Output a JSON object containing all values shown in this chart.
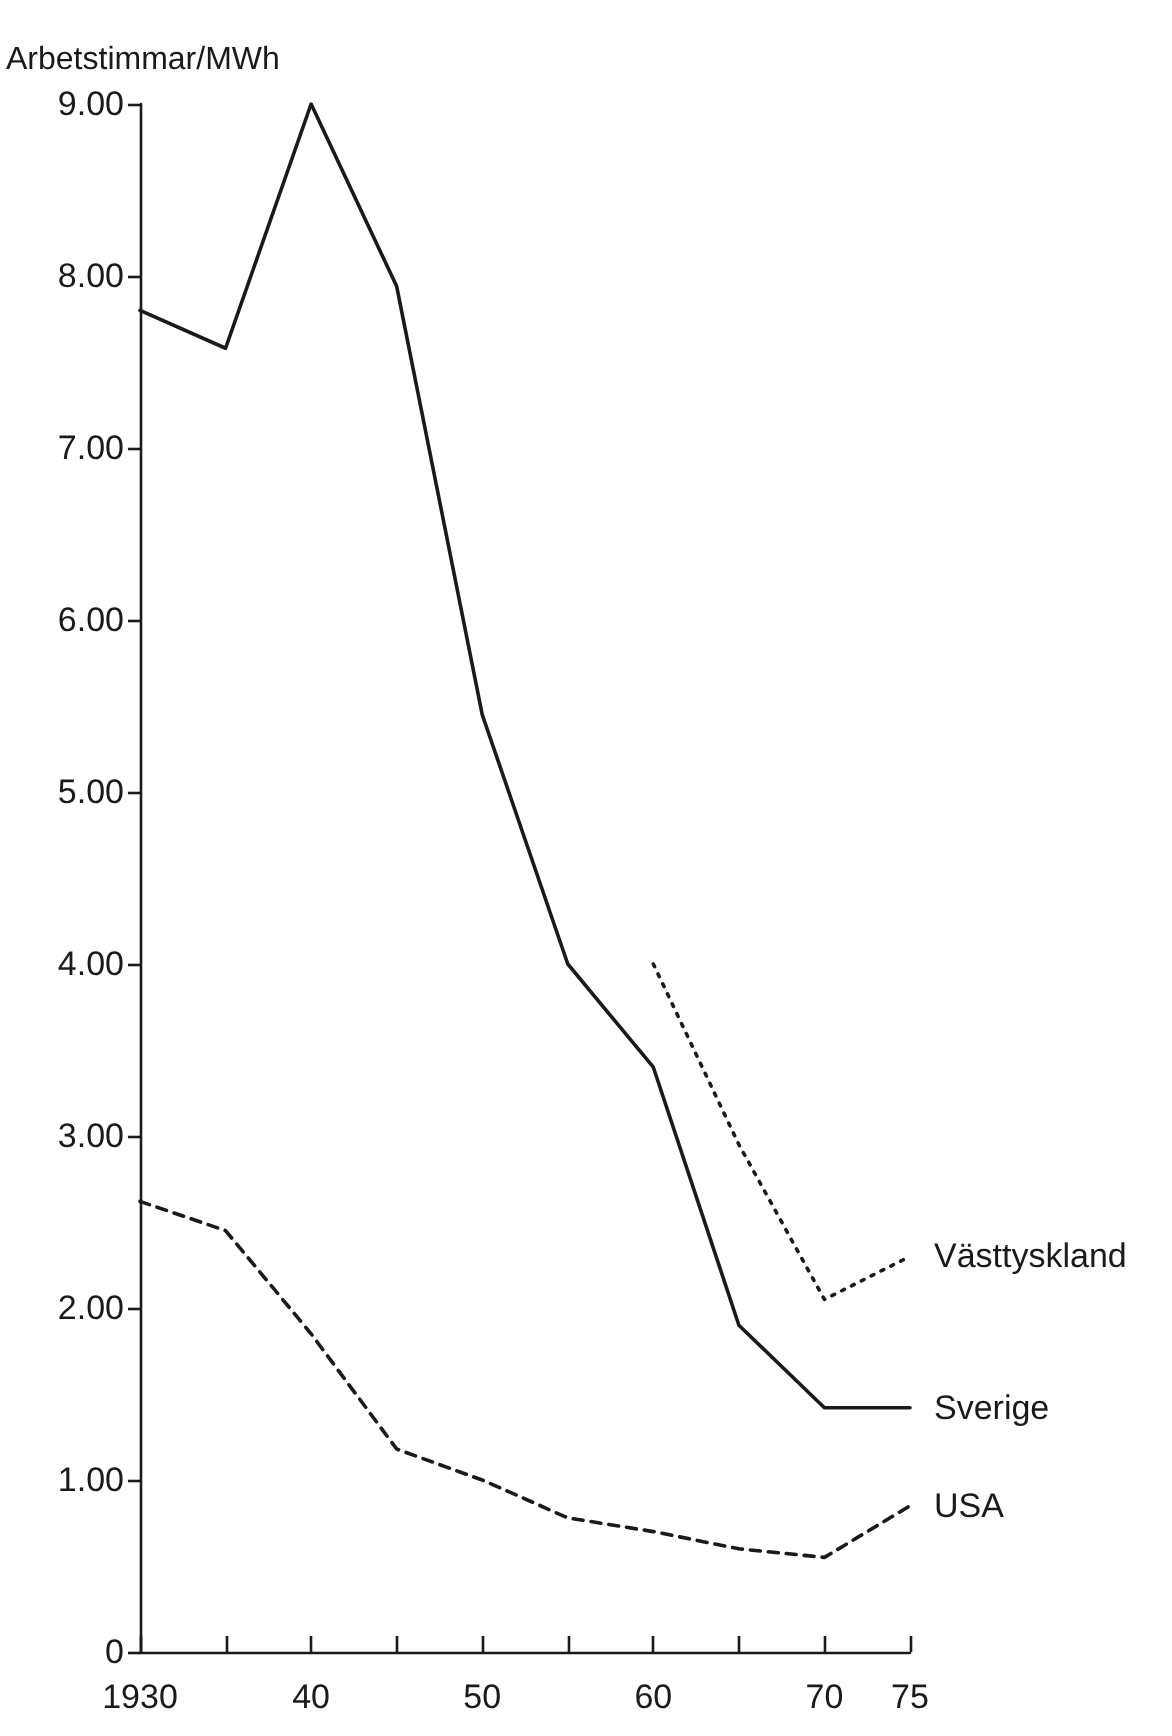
{
  "chart_data": {
    "type": "line",
    "ylabel": "Arbetstimmar/MWh",
    "x": [
      1930,
      1935,
      1940,
      1945,
      1950,
      1955,
      1960,
      1965,
      1970,
      1975
    ],
    "series": [
      {
        "name": "Sverige",
        "color": "#1a1a1a",
        "line_style": "solid",
        "values": [
          7.8,
          7.58,
          9.0,
          7.94,
          5.45,
          4.0,
          3.4,
          1.9,
          1.42,
          1.42
        ]
      },
      {
        "name": "Västtyskland",
        "color": "#1a1a1a",
        "line_style": "dotted",
        "values": [
          null,
          null,
          null,
          null,
          null,
          null,
          4.0,
          2.95,
          2.05,
          2.3
        ]
      },
      {
        "name": "USA",
        "color": "#1a1a1a",
        "line_style": "dashed",
        "values": [
          2.62,
          2.45,
          1.85,
          1.18,
          1.0,
          0.78,
          0.7,
          0.6,
          0.55,
          0.85
        ]
      }
    ],
    "xlim": [
      1930,
      1975
    ],
    "xticks": [
      {
        "value": 1930,
        "label": "1930"
      },
      {
        "value": 1935,
        "label": null
      },
      {
        "value": 1940,
        "label": "40"
      },
      {
        "value": 1945,
        "label": null
      },
      {
        "value": 1950,
        "label": "50"
      },
      {
        "value": 1955,
        "label": null
      },
      {
        "value": 1960,
        "label": "60"
      },
      {
        "value": 1965,
        "label": null
      },
      {
        "value": 1970,
        "label": "70"
      },
      {
        "value": 1975,
        "label": "75"
      }
    ],
    "ylim": [
      0,
      9
    ],
    "yticks": [
      {
        "value": 0,
        "label": "0"
      },
      {
        "value": 1,
        "label": "1.00"
      },
      {
        "value": 2,
        "label": "2.00"
      },
      {
        "value": 3,
        "label": "3.00"
      },
      {
        "value": 4,
        "label": "4.00"
      },
      {
        "value": 5,
        "label": "5.00"
      },
      {
        "value": 6,
        "label": "6.00"
      },
      {
        "value": 7,
        "label": "7.00"
      },
      {
        "value": 8,
        "label": "8.00"
      },
      {
        "value": 9,
        "label": "9.00"
      }
    ],
    "grid": false,
    "legend": false,
    "marker": "none"
  }
}
